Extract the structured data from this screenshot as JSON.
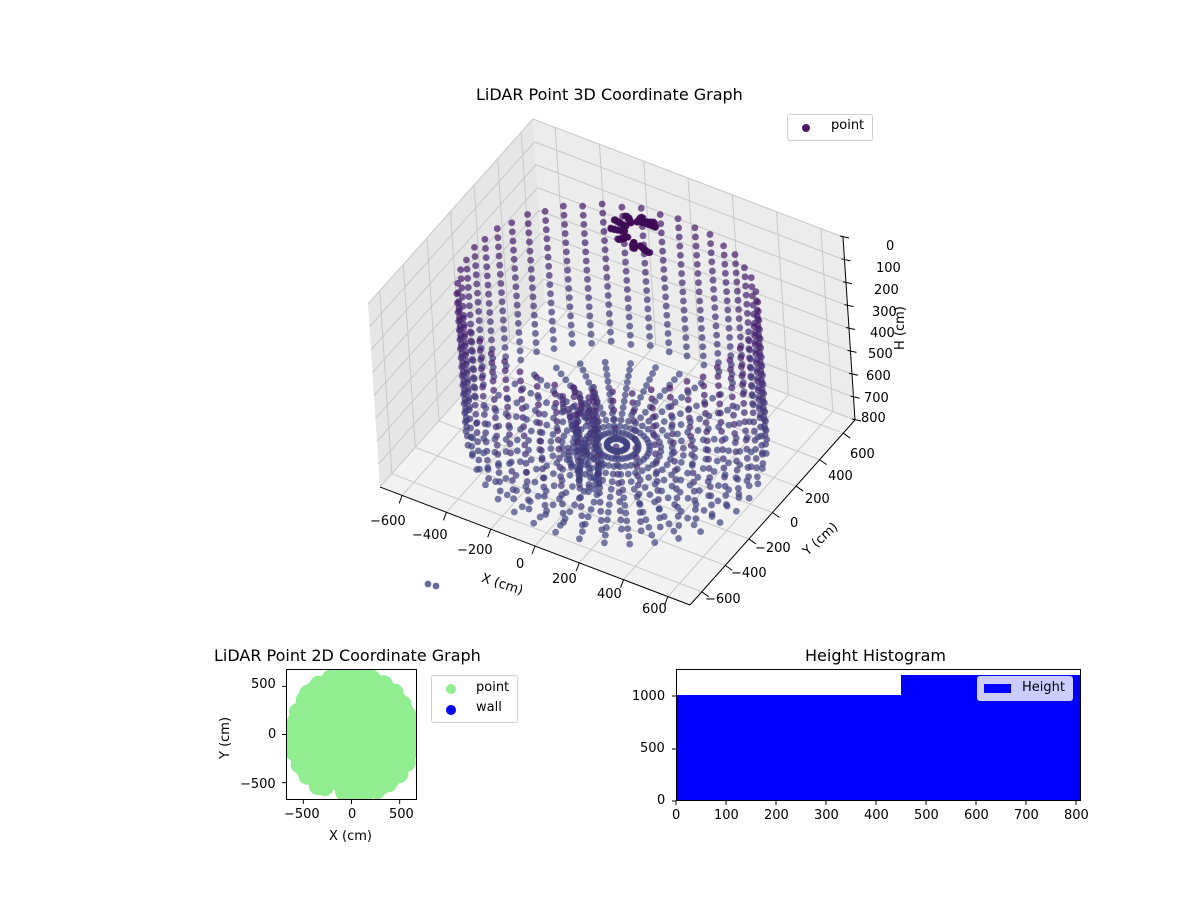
{
  "chart_data": [
    {
      "type": "scatter",
      "projection": "3d",
      "title": "LiDAR Point 3D Coordinate Graph",
      "xlabel": "X (cm)",
      "ylabel": "Y (cm)",
      "zlabel": "H (cm)",
      "xticks": [
        -600,
        -400,
        -200,
        0,
        200,
        400,
        600
      ],
      "yticks": [
        -600,
        -400,
        -200,
        0,
        200,
        400,
        600
      ],
      "zticks": [
        0,
        100,
        200,
        300,
        400,
        500,
        600,
        700,
        800
      ],
      "zlim": [
        800,
        0
      ],
      "z_inverted": true,
      "legend": [
        {
          "label": "point",
          "color": "#4b1a6b"
        }
      ],
      "colormap": "viridis (dark purple)",
      "description": "Cylindrical wall of LiDAR points radius ~600 cm spanning H 0-800 cm, radial floor spokes converging near origin, dense object cluster near top",
      "structure": {
        "wall_radius": 600,
        "wall_columns": 48,
        "wall_rows": 16,
        "floor_spokes": 36,
        "floor_radius": 600
      }
    },
    {
      "type": "scatter",
      "title": "LiDAR Point 2D Coordinate Graph",
      "xlabel": "X (cm)",
      "ylabel": "Y (cm)",
      "xticks": [
        -500,
        0,
        500
      ],
      "yticks": [
        -500,
        0,
        500
      ],
      "xlim": [
        -680,
        680
      ],
      "ylim": [
        -680,
        680
      ],
      "legend": [
        {
          "label": "point",
          "color": "#90ee90"
        },
        {
          "label": "wall",
          "color": "#0000ff"
        }
      ],
      "legend_position": "outside upper right"
    },
    {
      "type": "bar",
      "subtype": "histogram",
      "title": "Height Histogram",
      "bins": [
        [
          0,
          450
        ],
        [
          450,
          810
        ]
      ],
      "values": [
        1010,
        1200
      ],
      "xticks": [
        0,
        100,
        200,
        300,
        400,
        500,
        600,
        700,
        800
      ],
      "yticks": [
        0,
        500,
        1000
      ],
      "xlim": [
        0,
        810
      ],
      "ylim": [
        0,
        1260
      ],
      "legend": [
        {
          "label": "Height",
          "color": "#0000ff"
        }
      ],
      "legend_position": "upper right"
    }
  ],
  "labels": {
    "title3d": "LiDAR Point 3D Coordinate Graph",
    "title2d": "LiDAR Point 2D Coordinate Graph",
    "titleHist": "Height Histogram",
    "legend3d": "point",
    "legend2d_point": "point",
    "legend2d_wall": "wall",
    "legendHist": "Height",
    "xlabel3d": "X (cm)",
    "ylabel3d": "Y (cm)",
    "zlabel3d": "H (cm)",
    "xlabel2d": "X (cm)",
    "ylabel2d": "Y (cm)"
  },
  "ticks": {
    "z3d": [
      "0",
      "100",
      "200",
      "300",
      "400",
      "500",
      "600",
      "700",
      "800"
    ],
    "x3d": [
      "−600",
      "−400",
      "−200",
      "0",
      "200",
      "400",
      "600"
    ],
    "y3d": [
      "−600",
      "−400",
      "−200",
      "0",
      "200",
      "400",
      "600"
    ],
    "x2d": [
      "−500",
      "0",
      "500"
    ],
    "y2d": [
      "500",
      "0",
      "−500"
    ],
    "xh": [
      "0",
      "100",
      "200",
      "300",
      "400",
      "500",
      "600",
      "700",
      "800"
    ],
    "yh": [
      "1000",
      "500",
      "0"
    ]
  }
}
